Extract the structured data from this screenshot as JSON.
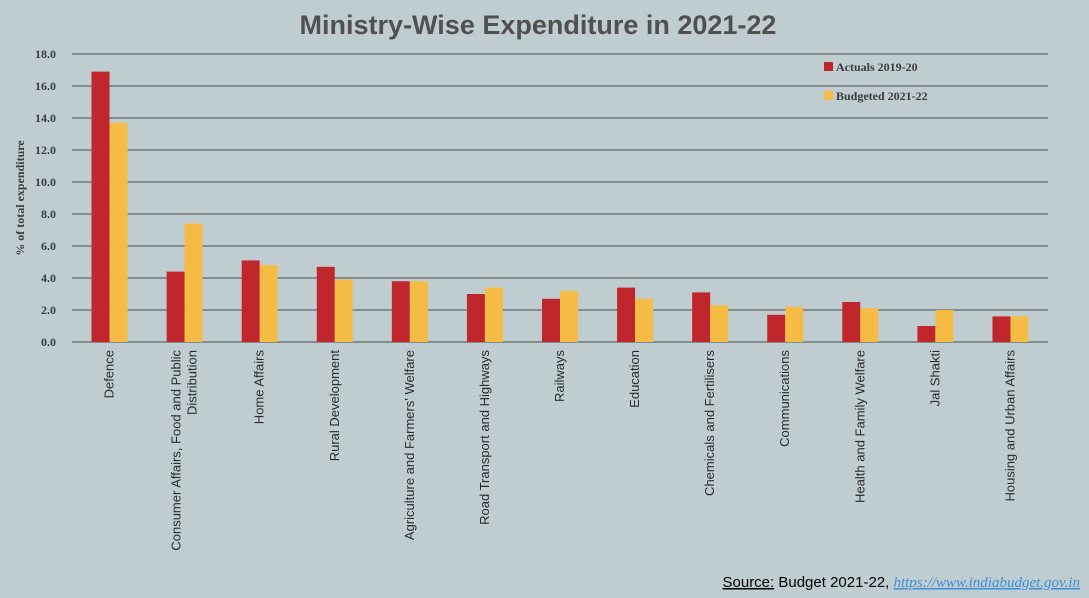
{
  "chart_data": {
    "type": "bar",
    "title": "Ministry-Wise Expenditure in 2021-22",
    "ylabel": "% of total expenditure",
    "xlabel": "",
    "ylim": [
      0,
      18
    ],
    "yticks": [
      "0.0",
      "2.0",
      "4.0",
      "6.0",
      "8.0",
      "10.0",
      "12.0",
      "14.0",
      "16.0",
      "18.0"
    ],
    "grid": true,
    "legend_position": "top-right",
    "categories": [
      [
        "Defence"
      ],
      [
        "Consumer Affairs, Food and Public",
        "Distribution"
      ],
      [
        "Home Affairs"
      ],
      [
        "Rural Development"
      ],
      [
        "Agriculture and Farmers' Welfare"
      ],
      [
        "Road Transport and Highways"
      ],
      [
        "Railways"
      ],
      [
        "Education"
      ],
      [
        "Chemicals and Fertilisers"
      ],
      [
        "Communications"
      ],
      [
        "Health and Family Welfare"
      ],
      [
        "Jal Shakti"
      ],
      [
        "Housing and Urban Affairs"
      ]
    ],
    "series": [
      {
        "name": "Actuals 2019-20",
        "color": "#c0272d",
        "values": [
          16.9,
          4.4,
          5.1,
          4.7,
          3.8,
          3.0,
          2.7,
          3.4,
          3.1,
          1.7,
          2.5,
          1.0,
          1.6
        ]
      },
      {
        "name": "Budgeted 2021-22",
        "color": "#f4bc45",
        "values": [
          13.7,
          7.4,
          4.8,
          3.9,
          3.8,
          3.4,
          3.2,
          2.7,
          2.3,
          2.2,
          2.1,
          2.0,
          1.6
        ]
      }
    ]
  },
  "source": {
    "label": "Source:",
    "text": " Budget 2021-22, ",
    "link": "https://www.indiabudget.gov.in"
  }
}
